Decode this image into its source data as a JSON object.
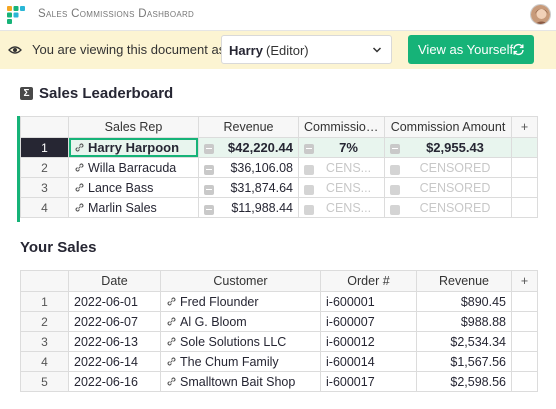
{
  "header": {
    "title": "Sales Commissions Dashboard"
  },
  "banner": {
    "text": "You are viewing this document as",
    "user_name": "Harry",
    "user_role": "(Editor)",
    "button_label": "View as Yourself"
  },
  "leaderboard": {
    "title": "Sales Leaderboard",
    "columns": [
      "Sales Rep",
      "Revenue",
      "Commission ...",
      "Commission Amount"
    ],
    "add_column": "+",
    "rows": [
      {
        "num": "1",
        "rep": "Harry Harpoon",
        "revenue": "$42,220.44",
        "rate": "7%",
        "amount": "$2,955.43"
      },
      {
        "num": "2",
        "rep": "Willa Barracuda",
        "revenue": "$36,106.08",
        "rate": "CENS...",
        "amount": "CENSORED"
      },
      {
        "num": "3",
        "rep": "Lance Bass",
        "revenue": "$31,874.64",
        "rate": "CENS...",
        "amount": "CENSORED"
      },
      {
        "num": "4",
        "rep": "Marlin Sales",
        "revenue": "$11,988.44",
        "rate": "CENS...",
        "amount": "CENSORED"
      }
    ]
  },
  "your_sales": {
    "title": "Your Sales",
    "columns": [
      "Date",
      "Customer",
      "Order #",
      "Revenue"
    ],
    "add_column": "+",
    "rows": [
      {
        "num": "1",
        "date": "2022-06-01",
        "customer": "Fred Flounder",
        "order": "i-600001",
        "revenue": "$890.45"
      },
      {
        "num": "2",
        "date": "2022-06-07",
        "customer": "Al G. Bloom",
        "order": "i-600007",
        "revenue": "$988.88"
      },
      {
        "num": "3",
        "date": "2022-06-13",
        "customer": "Sole Solutions LLC",
        "order": "i-600012",
        "revenue": "$2,534.34"
      },
      {
        "num": "4",
        "date": "2022-06-14",
        "customer": "The Chum Family",
        "order": "i-600014",
        "revenue": "$1,567.56"
      },
      {
        "num": "5",
        "date": "2022-06-16",
        "customer": "Smalltown Bait Shop",
        "order": "i-600017",
        "revenue": "$2,598.56"
      }
    ]
  },
  "colors": {
    "accent": "#16b378",
    "banner_bg": "#fcf4d2",
    "selected_row_bg": "#e8f5ee"
  }
}
